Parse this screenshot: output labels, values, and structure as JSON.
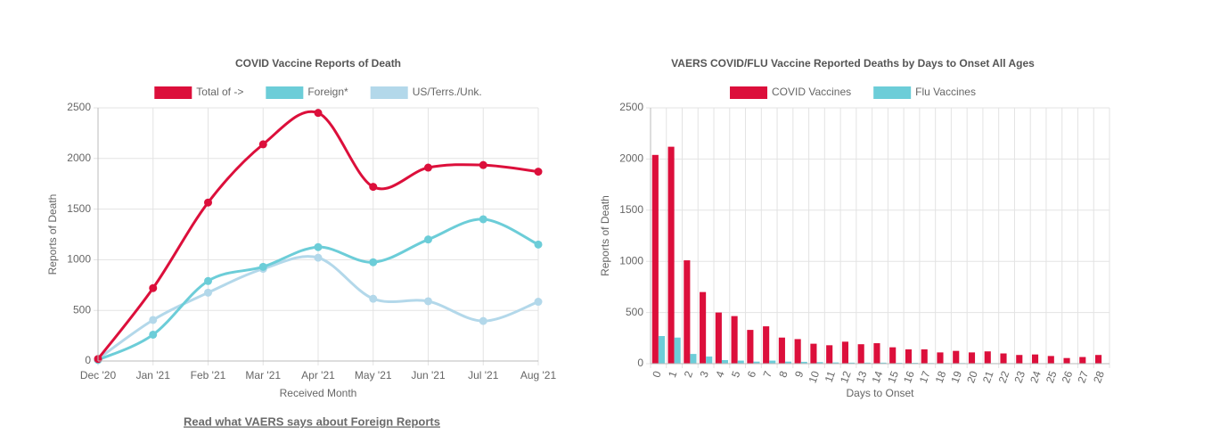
{
  "chart_data": [
    {
      "type": "line",
      "title": "COVID Vaccine Reports of Death",
      "categories": [
        "Dec '20",
        "Jan '21",
        "Feb '21",
        "Mar '21",
        "Apr '21",
        "May '21",
        "Jun '21",
        "Jul '21",
        "Aug '21"
      ],
      "series": [
        {
          "name": "Total of ->",
          "color": "#dc0f3b",
          "values": [
            20,
            720,
            1565,
            2140,
            2450,
            1720,
            1910,
            1935,
            1870
          ]
        },
        {
          "name": "Foreign*",
          "color": "#6ccdd8",
          "values": [
            10,
            260,
            790,
            930,
            1125,
            975,
            1200,
            1400,
            1150
          ]
        },
        {
          "name": "US/Terrs./Unk.",
          "color": "#b3d8ea",
          "values": [
            20,
            405,
            675,
            910,
            1020,
            615,
            590,
            395,
            585
          ]
        }
      ],
      "x_label": "Received Month",
      "y_label": "Reports of Death",
      "ylim": [
        0,
        2500
      ],
      "yticks": [
        0,
        500,
        1000,
        1500,
        2000,
        2500
      ],
      "grid": true
    },
    {
      "type": "bar",
      "title": "VAERS COVID/FLU Vaccine Reported Deaths by Days to Onset All Ages",
      "categories": [
        "0",
        "1",
        "2",
        "3",
        "4",
        "5",
        "6",
        "7",
        "8",
        "9",
        "10",
        "11",
        "12",
        "13",
        "14",
        "15",
        "16",
        "17",
        "18",
        "19",
        "20",
        "21",
        "22",
        "23",
        "24",
        "25",
        "26",
        "27",
        "28"
      ],
      "series": [
        {
          "name": "COVID Vaccines",
          "color": "#dc0f3b",
          "values": [
            2040,
            2120,
            1010,
            700,
            500,
            465,
            330,
            365,
            255,
            240,
            195,
            180,
            215,
            190,
            200,
            160,
            140,
            140,
            110,
            125,
            110,
            120,
            100,
            85,
            90,
            75,
            55,
            65,
            85
          ]
        },
        {
          "name": "Flu Vaccines",
          "color": "#6ccdd8",
          "values": [
            270,
            255,
            95,
            70,
            35,
            30,
            20,
            30,
            20,
            18,
            15,
            12,
            10,
            10,
            10,
            8,
            8,
            6,
            6,
            6,
            6,
            5,
            5,
            4,
            4,
            4,
            3,
            3,
            3
          ]
        }
      ],
      "x_label": "Days to Onset",
      "y_label": "Reports of Death",
      "ylim": [
        0,
        2500
      ],
      "yticks": [
        0,
        500,
        1000,
        1500,
        2000,
        2500
      ],
      "grid": true
    }
  ],
  "link": "Read what VAERS says about Foreign Reports"
}
